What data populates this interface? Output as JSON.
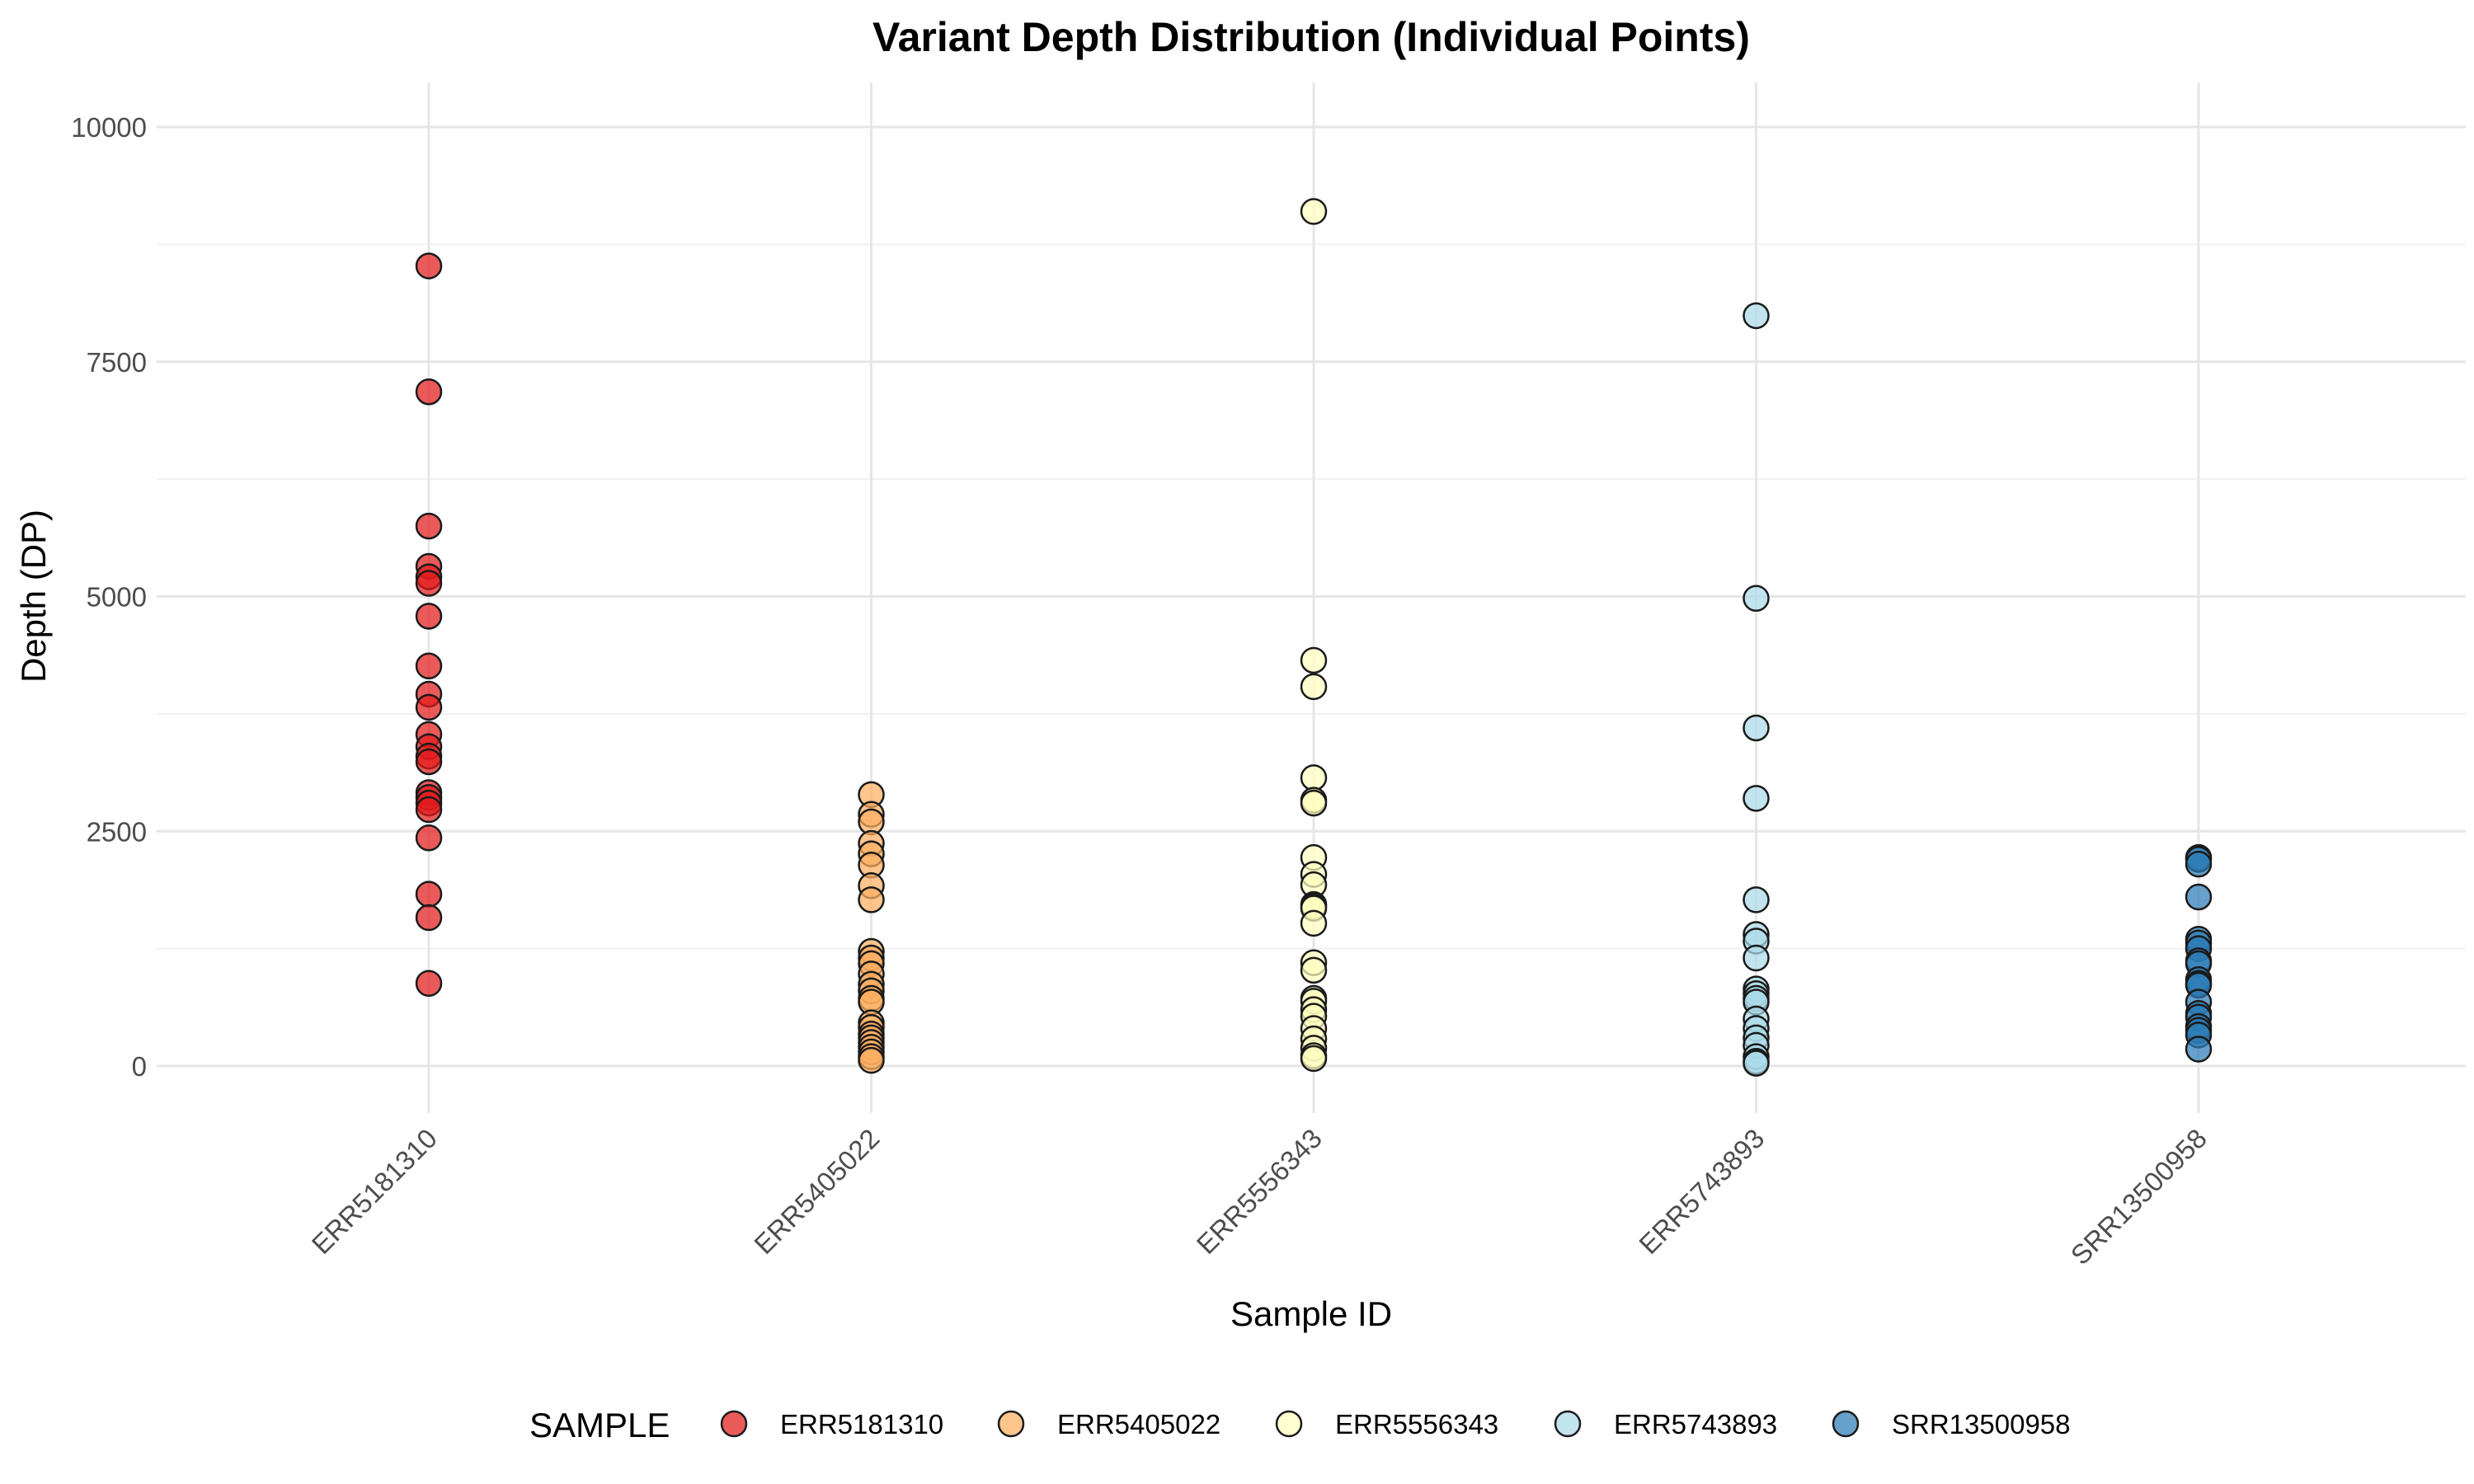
{
  "chart_data": {
    "type": "scatter",
    "title": "Variant Depth Distribution (Individual Points)",
    "xlabel": "Sample ID",
    "ylabel": "Depth (DP)",
    "categories": [
      "ERR5181310",
      "ERR5405022",
      "ERR5556343",
      "ERR5743893",
      "SRR13500958"
    ],
    "ylim": [
      -500,
      10500
    ],
    "yticks": [
      0,
      2500,
      5000,
      7500,
      10000
    ],
    "grid": true,
    "legend": {
      "title": "SAMPLE",
      "placement": "bottom",
      "entries": [
        "ERR5181310",
        "ERR5405022",
        "ERR5556343",
        "ERR5743893",
        "SRR13500958"
      ]
    },
    "series": [
      {
        "name": "ERR5181310",
        "color": "#e31a1c",
        "values": [
          8520,
          7180,
          5750,
          5320,
          5210,
          5140,
          4790,
          4260,
          3960,
          3820,
          3530,
          3400,
          3300,
          3240,
          2910,
          2860,
          2800,
          2730,
          2430,
          1830,
          1580,
          880
        ]
      },
      {
        "name": "ERR5405022",
        "color": "#fdae61",
        "values": [
          2890,
          2680,
          2600,
          2370,
          2260,
          2140,
          1920,
          1770,
          1220,
          1150,
          1090,
          980,
          870,
          800,
          720,
          680,
          460,
          410,
          340,
          300,
          250,
          200,
          150,
          100,
          60
        ]
      },
      {
        "name": "ERR5556343",
        "color": "#ffffbf",
        "values": [
          9100,
          4320,
          4040,
          3070,
          2830,
          2800,
          2220,
          2040,
          1930,
          1720,
          1700,
          1680,
          1520,
          1100,
          1020,
          720,
          690,
          600,
          530,
          400,
          290,
          190,
          110,
          80
        ]
      },
      {
        "name": "ERR5743893",
        "color": "#abd9e9",
        "values": [
          7990,
          4980,
          3600,
          2850,
          1770,
          1400,
          1330,
          1150,
          820,
          770,
          720,
          680,
          500,
          400,
          300,
          220,
          100,
          50,
          30
        ]
      },
      {
        "name": "SRR13500958",
        "color": "#2c7bb6",
        "values": [
          2220,
          2200,
          2150,
          1800,
          1350,
          1310,
          1250,
          1120,
          1090,
          920,
          880,
          860,
          680,
          560,
          520,
          420,
          380,
          330,
          180
        ]
      }
    ]
  }
}
